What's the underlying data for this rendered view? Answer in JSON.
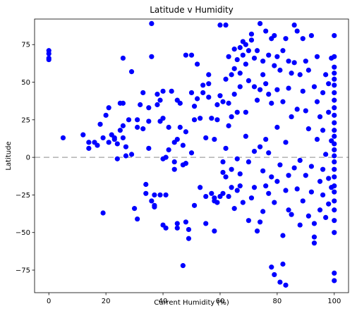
{
  "chart_data": {
    "type": "scatter",
    "title": "Latitude v Humidity",
    "xlabel": "Current Humidity (%)",
    "ylabel": "Latitude",
    "xlim": [
      -5,
      105
    ],
    "ylim": [
      -90,
      92
    ],
    "xticks": [
      0,
      20,
      40,
      60,
      80,
      100
    ],
    "yticks": [
      -75,
      -50,
      -25,
      0,
      25,
      50,
      75
    ],
    "grid": false,
    "marker_color": "#0000ff",
    "reference_line": {
      "y": 0,
      "color": "#b0b0b0",
      "style": "dashed"
    },
    "series": [
      {
        "points": [
          [
            0,
            71
          ],
          [
            0,
            69
          ],
          [
            0,
            66
          ],
          [
            0,
            65
          ],
          [
            5,
            13
          ],
          [
            12,
            15
          ],
          [
            14,
            10
          ],
          [
            14,
            6
          ],
          [
            16,
            10
          ],
          [
            17,
            8
          ],
          [
            18,
            22
          ],
          [
            19,
            13
          ],
          [
            19,
            -37
          ],
          [
            20,
            28
          ],
          [
            21,
            33
          ],
          [
            21,
            10
          ],
          [
            22,
            15
          ],
          [
            23,
            13
          ],
          [
            23,
            12
          ],
          [
            24,
            -1
          ],
          [
            24,
            9
          ],
          [
            25,
            18
          ],
          [
            25,
            36
          ],
          [
            26,
            36
          ],
          [
            26,
            66
          ],
          [
            26,
            21
          ],
          [
            26,
            13
          ],
          [
            27,
            7
          ],
          [
            27,
            1
          ],
          [
            28,
            25
          ],
          [
            29,
            57
          ],
          [
            29,
            2
          ],
          [
            30,
            -34
          ],
          [
            31,
            25
          ],
          [
            31,
            20
          ],
          [
            31,
            -41
          ],
          [
            32,
            35
          ],
          [
            33,
            43
          ],
          [
            33,
            19
          ],
          [
            34,
            -24
          ],
          [
            34,
            -18
          ],
          [
            35,
            6
          ],
          [
            35,
            33
          ],
          [
            35,
            24
          ],
          [
            36,
            89
          ],
          [
            36,
            67
          ],
          [
            36,
            -29
          ],
          [
            37,
            -32
          ],
          [
            37,
            -33
          ],
          [
            37,
            -25
          ],
          [
            38,
            35
          ],
          [
            38,
            42
          ],
          [
            39,
            24
          ],
          [
            39,
            38
          ],
          [
            39,
            -25
          ],
          [
            40,
            44
          ],
          [
            40,
            26
          ],
          [
            40,
            -1
          ],
          [
            40,
            -45
          ],
          [
            41,
            -47
          ],
          [
            41,
            0
          ],
          [
            41,
            -25
          ],
          [
            42,
            20
          ],
          [
            42,
            5
          ],
          [
            43,
            44
          ],
          [
            44,
            -8
          ],
          [
            44,
            10
          ],
          [
            44,
            -3
          ],
          [
            45,
            -44
          ],
          [
            45,
            -47
          ],
          [
            45,
            38
          ],
          [
            45,
            12
          ],
          [
            46,
            36
          ],
          [
            46,
            20
          ],
          [
            47,
            -72
          ],
          [
            47,
            -5
          ],
          [
            47,
            8
          ],
          [
            48,
            68
          ],
          [
            48,
            -43
          ],
          [
            48,
            17
          ],
          [
            48,
            -4
          ],
          [
            49,
            -54
          ],
          [
            49,
            -48
          ],
          [
            50,
            68
          ],
          [
            50,
            43
          ],
          [
            50,
            3
          ],
          [
            51,
            25
          ],
          [
            51,
            34
          ],
          [
            51,
            -32
          ],
          [
            52,
            39
          ],
          [
            52,
            62
          ],
          [
            53,
            26
          ],
          [
            53,
            -20
          ],
          [
            54,
            48
          ],
          [
            54,
            43
          ],
          [
            55,
            13
          ],
          [
            55,
            -44
          ],
          [
            55,
            -26
          ],
          [
            56,
            49
          ],
          [
            56,
            55
          ],
          [
            56,
            40
          ],
          [
            57,
            -24
          ],
          [
            57,
            26
          ],
          [
            58,
            -27
          ],
          [
            58,
            12
          ],
          [
            58,
            -49
          ],
          [
            58,
            -29
          ],
          [
            59,
            35
          ],
          [
            59,
            25
          ],
          [
            59,
            -30
          ],
          [
            60,
            88
          ],
          [
            60,
            41
          ],
          [
            60,
            -26
          ],
          [
            61,
            -10
          ],
          [
            61,
            37
          ],
          [
            61,
            -24
          ],
          [
            61,
            -3
          ],
          [
            62,
            88
          ],
          [
            62,
            6
          ],
          [
            62,
            52
          ],
          [
            62,
            -13
          ],
          [
            63,
            67
          ],
          [
            63,
            36
          ],
          [
            63,
            -26
          ],
          [
            63,
            21
          ],
          [
            64,
            55
          ],
          [
            64,
            -20
          ],
          [
            64,
            -8
          ],
          [
            64,
            27
          ],
          [
            65,
            72
          ],
          [
            65,
            59
          ],
          [
            65,
            42
          ],
          [
            65,
            -34
          ],
          [
            66,
            65
          ],
          [
            66,
            -1
          ],
          [
            66,
            30
          ],
          [
            66,
            -22
          ],
          [
            67,
            73
          ],
          [
            67,
            56
          ],
          [
            67,
            47
          ],
          [
            67,
            -11
          ],
          [
            67,
            -19
          ],
          [
            68,
            77
          ],
          [
            68,
            68
          ],
          [
            68,
            -30
          ],
          [
            69,
            75
          ],
          [
            69,
            62
          ],
          [
            69,
            30
          ],
          [
            69,
            14
          ],
          [
            70,
            71
          ],
          [
            70,
            51
          ],
          [
            70,
            -42
          ],
          [
            70,
            -3
          ],
          [
            71,
            78
          ],
          [
            71,
            82
          ],
          [
            71,
            -27
          ],
          [
            72,
            66
          ],
          [
            72,
            47
          ],
          [
            72,
            4
          ],
          [
            72,
            -20
          ],
          [
            73,
            71
          ],
          [
            73,
            38
          ],
          [
            73,
            -49
          ],
          [
            74,
            89
          ],
          [
            74,
            45
          ],
          [
            74,
            7
          ],
          [
            74,
            -43
          ],
          [
            75,
            64
          ],
          [
            75,
            55
          ],
          [
            75,
            -36
          ],
          [
            75,
            -9
          ],
          [
            76,
            84
          ],
          [
            76,
            49
          ],
          [
            76,
            12
          ],
          [
            76,
            -19
          ],
          [
            77,
            68
          ],
          [
            77,
            42
          ],
          [
            77,
            3
          ],
          [
            77,
            -24
          ],
          [
            78,
            79
          ],
          [
            78,
            -73
          ],
          [
            78,
            -13
          ],
          [
            78,
            36
          ],
          [
            79,
            81
          ],
          [
            79,
            -78
          ],
          [
            79,
            61
          ],
          [
            79,
            -30
          ],
          [
            80,
            67
          ],
          [
            80,
            45
          ],
          [
            80,
            -16
          ],
          [
            80,
            20
          ],
          [
            81,
            58
          ],
          [
            81,
            -83
          ],
          [
            81,
            -5
          ],
          [
            82,
            71
          ],
          [
            82,
            -52
          ],
          [
            82,
            -71
          ],
          [
            82,
            37
          ],
          [
            83,
            79
          ],
          [
            83,
            -85
          ],
          [
            83,
            -22
          ],
          [
            83,
            10
          ],
          [
            84,
            64
          ],
          [
            84,
            46
          ],
          [
            84,
            -35
          ],
          [
            84,
            -12
          ],
          [
            85,
            56
          ],
          [
            85,
            27
          ],
          [
            85,
            -38
          ],
          [
            86,
            88
          ],
          [
            86,
            -7
          ],
          [
            86,
            63
          ],
          [
            87,
            84
          ],
          [
            87,
            32
          ],
          [
            87,
            -21
          ],
          [
            88,
            55
          ],
          [
            88,
            -2
          ],
          [
            88,
            -45
          ],
          [
            89,
            44
          ],
          [
            89,
            79
          ],
          [
            89,
            -29
          ],
          [
            90,
            64
          ],
          [
            90,
            31
          ],
          [
            90,
            -12
          ],
          [
            91,
            58
          ],
          [
            91,
            -39
          ],
          [
            91,
            19
          ],
          [
            92,
            81
          ],
          [
            92,
            -23
          ],
          [
            92,
            -6
          ],
          [
            93,
            47
          ],
          [
            93,
            -57
          ],
          [
            93,
            -53
          ],
          [
            93,
            -44
          ],
          [
            94,
            67
          ],
          [
            94,
            37
          ],
          [
            94,
            12
          ],
          [
            95,
            -16
          ],
          [
            95,
            27
          ],
          [
            95,
            -35
          ],
          [
            96,
            43
          ],
          [
            96,
            18
          ],
          [
            96,
            -8
          ],
          [
            96,
            -25
          ],
          [
            97,
            55
          ],
          [
            97,
            -40
          ],
          [
            97,
            2
          ],
          [
            98,
            30
          ],
          [
            98,
            -14
          ],
          [
            98,
            -31
          ],
          [
            98,
            49
          ],
          [
            99,
            66
          ],
          [
            99,
            11
          ],
          [
            99,
            -20
          ],
          [
            100,
            81
          ],
          [
            100,
            67
          ],
          [
            100,
            60
          ],
          [
            100,
            56
          ],
          [
            100,
            52
          ],
          [
            100,
            48
          ],
          [
            100,
            43
          ],
          [
            100,
            38
          ],
          [
            100,
            33
          ],
          [
            100,
            28
          ],
          [
            100,
            23
          ],
          [
            100,
            18
          ],
          [
            100,
            14
          ],
          [
            100,
            9
          ],
          [
            100,
            5
          ],
          [
            100,
            1
          ],
          [
            100,
            -3
          ],
          [
            100,
            -8
          ],
          [
            100,
            -13
          ],
          [
            100,
            -19
          ],
          [
            100,
            -23
          ],
          [
            100,
            -29
          ],
          [
            100,
            -35
          ],
          [
            100,
            -42
          ],
          [
            100,
            -50
          ],
          [
            100,
            -77
          ],
          [
            100,
            -82
          ]
        ]
      }
    ]
  }
}
